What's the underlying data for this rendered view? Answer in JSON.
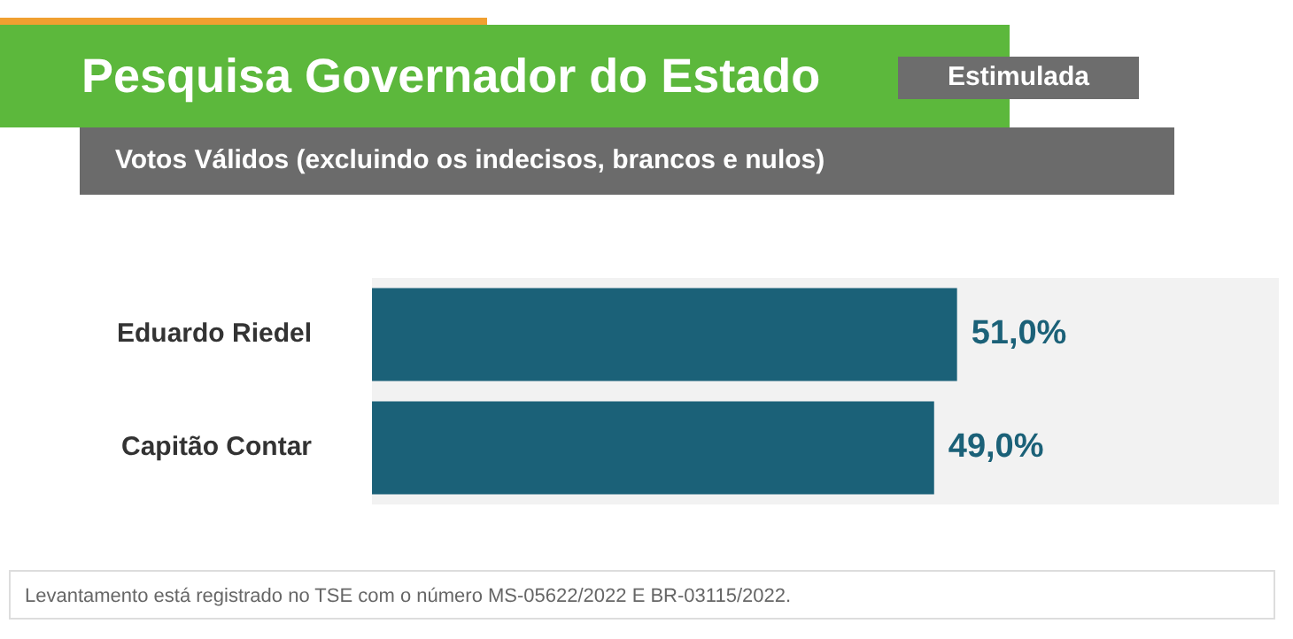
{
  "chart_data": {
    "type": "bar",
    "orientation": "horizontal",
    "title": "Pesquisa Governador do Estado",
    "subtitle": "Votos Válidos (excluindo os indecisos, brancos e nulos)",
    "categories": [
      "Eduardo Riedel",
      "Capitão Contar"
    ],
    "values": [
      51.0,
      49.0
    ],
    "color": "#1b6178",
    "value_labels": [
      "51,0%",
      "49,0%"
    ],
    "annotations": [
      "Estimulada",
      "Levantamento está registrado no TSE com o número MS-05622/2022 E BR-03115/2022."
    ]
  }
}
